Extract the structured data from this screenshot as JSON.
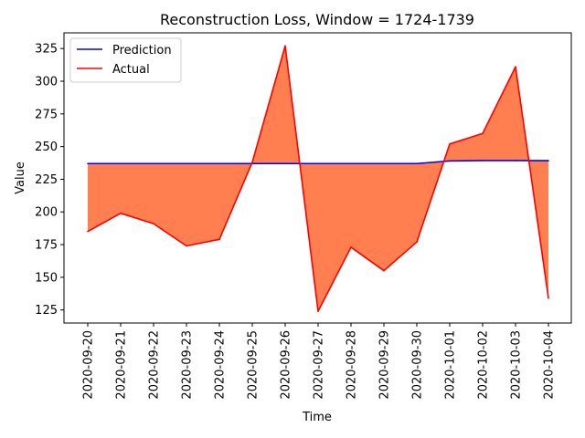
{
  "chart_data": {
    "type": "line",
    "title": "Reconstruction Loss, Window = 1724-1739",
    "xlabel": "Time",
    "ylabel": "Value",
    "x": [
      "2020-09-20",
      "2020-09-21",
      "2020-09-22",
      "2020-09-23",
      "2020-09-24",
      "2020-09-25",
      "2020-09-26",
      "2020-09-27",
      "2020-09-28",
      "2020-09-29",
      "2020-09-30",
      "2020-10-01",
      "2020-10-02",
      "2020-10-03",
      "2020-10-04"
    ],
    "yticks": [
      125,
      150,
      175,
      200,
      225,
      250,
      275,
      300,
      325
    ],
    "ylim": [
      115,
      337
    ],
    "series": [
      {
        "name": "Prediction",
        "color": "#0000ff",
        "values": [
          237,
          237,
          237,
          237,
          237,
          237,
          237,
          237,
          237,
          237,
          237,
          239,
          239.3,
          239.3,
          239.2
        ]
      },
      {
        "name": "Actual",
        "color": "#ff0000",
        "values": [
          185,
          199,
          191,
          174,
          179,
          238,
          327,
          124,
          173,
          155,
          177,
          252,
          260,
          311,
          134
        ]
      }
    ],
    "fill_color": "#ff7f50",
    "legend_position": "upper-left",
    "grid": false
  }
}
